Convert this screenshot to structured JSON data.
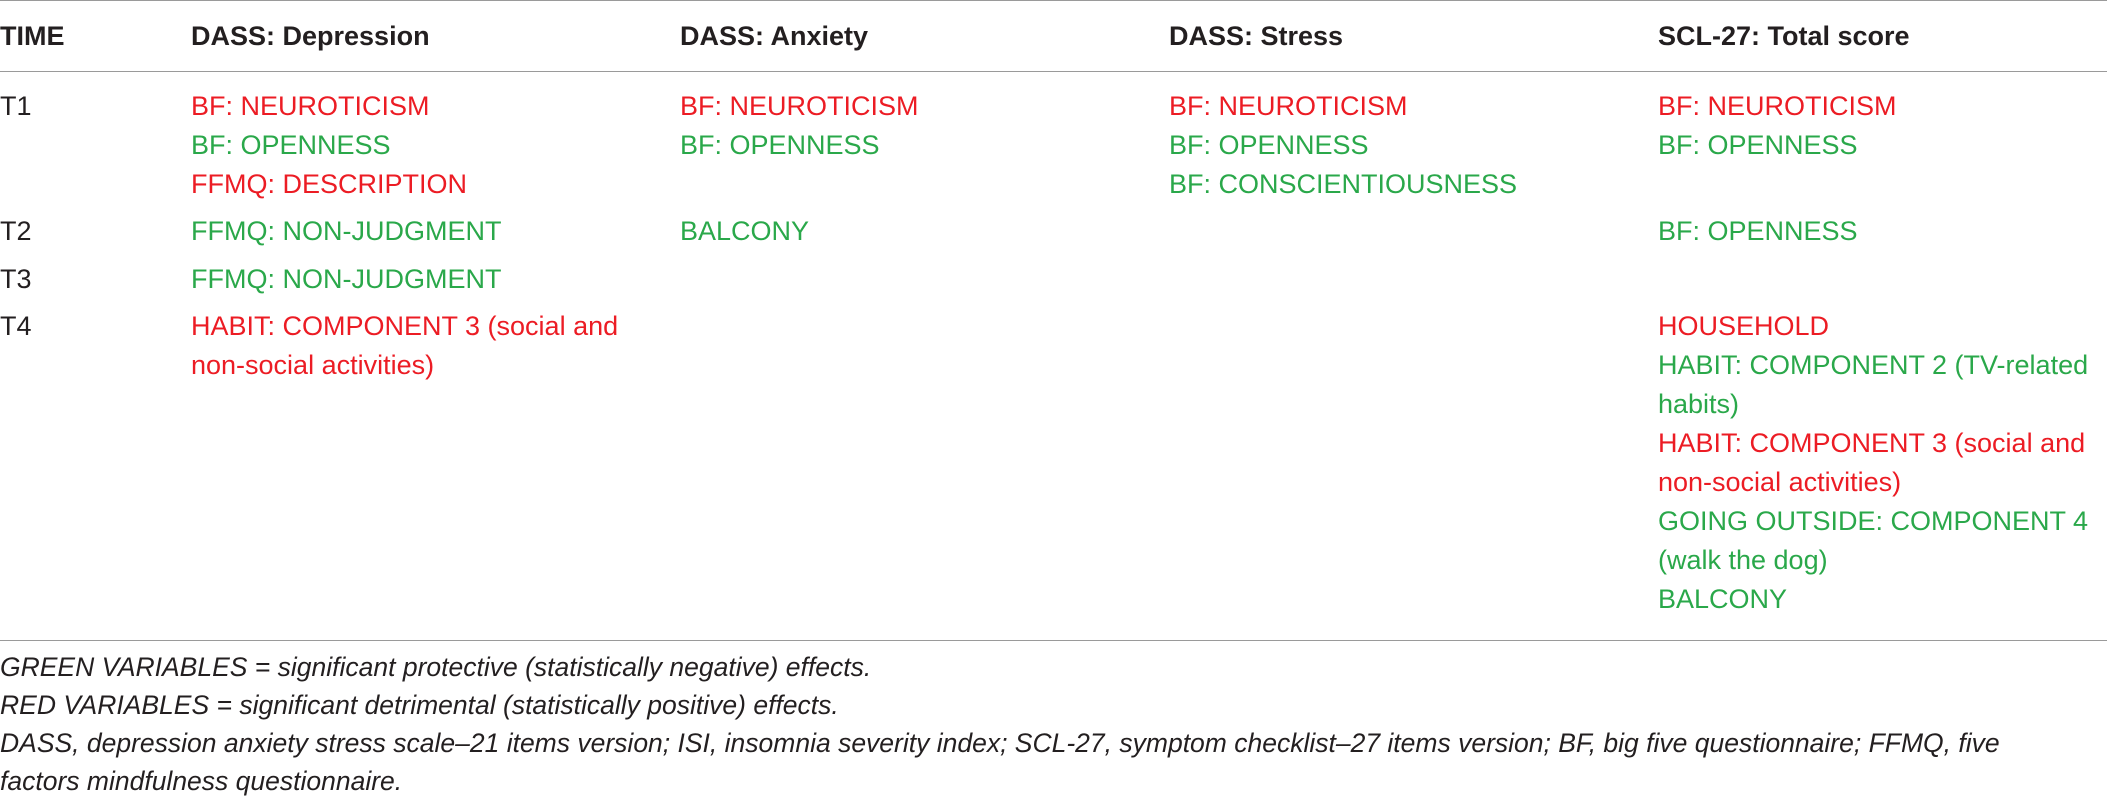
{
  "colors": {
    "protective": "#2aa84a",
    "detrimental": "#ec1c24",
    "text": "#231f20"
  },
  "header": {
    "time": "TIME",
    "dep": "DASS: Depression",
    "anx": "DASS: Anxiety",
    "str": "DASS: Stress",
    "scl": "SCL-27: Total score"
  },
  "rows": {
    "t1": {
      "label": "T1",
      "dep": [
        "BF: NEUROTICISM",
        "BF: OPENNESS",
        "FFMQ: DESCRIPTION"
      ],
      "anx": [
        "BF: NEUROTICISM",
        "BF: OPENNESS"
      ],
      "str": [
        "BF: NEUROTICISM",
        "BF: OPENNESS",
        "BF: CONSCIENTIOUSNESS"
      ],
      "scl": [
        "BF: NEUROTICISM",
        "BF: OPENNESS"
      ]
    },
    "t2": {
      "label": "T2",
      "dep": [
        "FFMQ: NON-JUDGMENT"
      ],
      "anx": [
        "BALCONY"
      ],
      "scl": [
        "BF: OPENNESS"
      ]
    },
    "t3": {
      "label": "T3",
      "dep": [
        "FFMQ: NON-JUDGMENT"
      ]
    },
    "t4": {
      "label": "T4",
      "dep": [
        "HABIT: COMPONENT 3 (social and",
        "non-social activities)"
      ],
      "scl": [
        "HOUSEHOLD",
        "HABIT: COMPONENT 2 (TV-related",
        "habits)",
        "HABIT: COMPONENT 3 (social and",
        "non-social activities)",
        "GOING OUTSIDE: COMPONENT 4",
        "(walk the dog)",
        "BALCONY"
      ]
    }
  },
  "notes": [
    "GREEN VARIABLES = significant protective (statistically negative) effects.",
    "RED VARIABLES = significant detrimental (statistically positive) effects.",
    "DASS, depression anxiety stress scale–21 items version; ISI, insomnia severity index; SCL-27, symptom checklist–27 items version; BF, big five questionnaire; FFMQ, five",
    "factors mindfulness questionnaire."
  ]
}
